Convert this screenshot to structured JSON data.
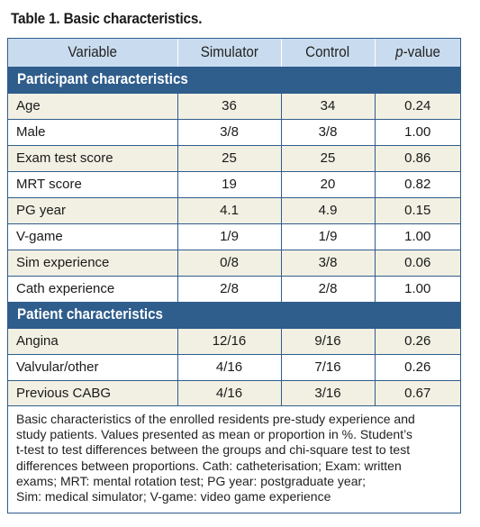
{
  "caption": "Table 1. Basic characteristics.",
  "columns": [
    "Variable",
    "Simulator",
    "Control",
    "p-value"
  ],
  "sections": [
    {
      "title": "Participant characteristics",
      "rows": [
        {
          "variable": "Age",
          "simulator": "36",
          "control": "34",
          "p": "0.24"
        },
        {
          "variable": "Male",
          "simulator": "3/8",
          "control": "3/8",
          "p": "1.00"
        },
        {
          "variable": "Exam test score",
          "simulator": "25",
          "control": "25",
          "p": "0.86"
        },
        {
          "variable": "MRT score",
          "simulator": "19",
          "control": "20",
          "p": "0.82"
        },
        {
          "variable": "PG year",
          "simulator": "4.1",
          "control": "4.9",
          "p": "0.15"
        },
        {
          "variable": "V-game",
          "simulator": "1/9",
          "control": "1/9",
          "p": "1.00"
        },
        {
          "variable": "Sim experience",
          "simulator": "0/8",
          "control": "3/8",
          "p": "0.06"
        },
        {
          "variable": "Cath experience",
          "simulator": "2/8",
          "control": "2/8",
          "p": "1.00"
        }
      ]
    },
    {
      "title": "Patient characteristics",
      "rows": [
        {
          "variable": "Angina",
          "simulator": "12/16",
          "control": "9/16",
          "p": "0.26"
        },
        {
          "variable": "Valvular/other",
          "simulator": "4/16",
          "control": "7/16",
          "p": "0.26"
        },
        {
          "variable": "Previous CABG",
          "simulator": "4/16",
          "control": "3/16",
          "p": "0.67"
        }
      ]
    }
  ],
  "footnote_lines": [
    "Basic characteristics of the enrolled residents pre-study experience and",
    "study patients. Values presented as mean or proportion in %. Student’s",
    "t-test to test differences between the groups and chi-square test to test",
    "differences between proportions. Cath: catheterisation; Exam: written",
    "exams; MRT: mental rotation test; PG year: postgraduate year;",
    "Sim: medical simulator; V-game: video game experience"
  ]
}
